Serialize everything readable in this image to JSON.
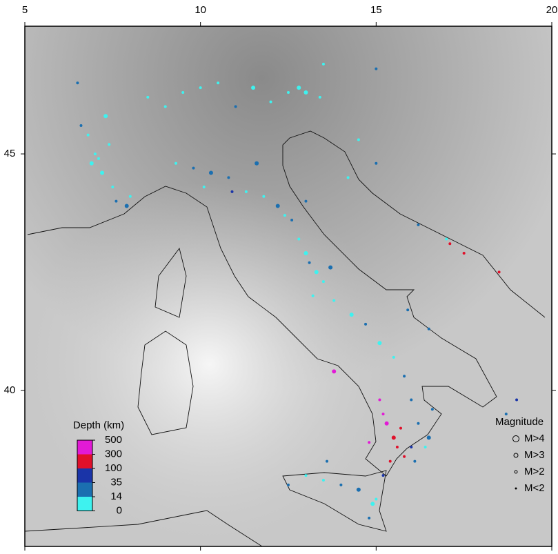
{
  "map": {
    "xlim": [
      5,
      20
    ],
    "ylim": [
      36.7,
      47.7
    ],
    "xticks": [
      5,
      10,
      15,
      20
    ],
    "yticks": [
      40,
      45
    ],
    "depth_legend": {
      "title": "Depth (km)",
      "ticks": [
        0,
        14,
        35,
        100,
        300,
        500
      ],
      "colors": [
        "#3ef2ef",
        "#1b6fb0",
        "#1a34a8",
        "#e0102a",
        "#e21ad6"
      ]
    },
    "magnitude_legend": {
      "title": "Magnitude",
      "labels": [
        "M>4",
        "M>3",
        "M>2",
        "M<2"
      ],
      "sizes": [
        4.5,
        3,
        2,
        1
      ]
    },
    "earthquakes": [
      [
        7.0,
        45.0,
        5,
        2.5
      ],
      [
        7.2,
        44.6,
        8,
        3.2
      ],
      [
        7.5,
        44.3,
        6,
        2.2
      ],
      [
        6.8,
        45.4,
        10,
        2
      ],
      [
        7.3,
        45.8,
        4,
        3
      ],
      [
        8.0,
        44.1,
        9,
        2.4
      ],
      [
        7.6,
        44.0,
        20,
        2.1
      ],
      [
        6.9,
        44.8,
        7,
        3.5
      ],
      [
        7.1,
        44.9,
        3,
        2.8
      ],
      [
        7.4,
        45.2,
        12,
        2.2
      ],
      [
        6.6,
        45.6,
        25,
        2.6
      ],
      [
        7.9,
        43.9,
        15,
        3.1
      ],
      [
        9.5,
        46.3,
        5,
        2.2
      ],
      [
        10.5,
        46.5,
        6,
        2.5
      ],
      [
        11.5,
        46.4,
        8,
        3.1
      ],
      [
        12.5,
        46.3,
        6,
        2.6
      ],
      [
        13.0,
        46.3,
        9,
        3.3
      ],
      [
        13.4,
        46.2,
        7,
        2.4
      ],
      [
        12.0,
        46.1,
        10,
        2.8
      ],
      [
        8.5,
        46.2,
        5,
        2.3
      ],
      [
        9.0,
        46.0,
        4,
        2.1
      ],
      [
        10.0,
        46.4,
        6,
        2.7
      ],
      [
        12.8,
        46.4,
        12,
        3.6
      ],
      [
        11.0,
        46.0,
        22,
        2.3
      ],
      [
        6.5,
        46.5,
        20,
        2.4
      ],
      [
        10.3,
        44.6,
        20,
        3.0
      ],
      [
        10.8,
        44.5,
        25,
        2.6
      ],
      [
        11.3,
        44.2,
        10,
        2.4
      ],
      [
        9.8,
        44.7,
        30,
        2.8
      ],
      [
        11.8,
        44.1,
        8,
        2.5
      ],
      [
        12.2,
        43.9,
        18,
        3.2
      ],
      [
        10.9,
        44.2,
        40,
        2.2
      ],
      [
        9.3,
        44.8,
        12,
        2.1
      ],
      [
        11.6,
        44.8,
        28,
        3.4
      ],
      [
        10.1,
        44.3,
        6,
        2.6
      ],
      [
        12.4,
        43.7,
        9,
        2.3
      ],
      [
        12.8,
        43.2,
        8,
        2.7
      ],
      [
        13.0,
        42.9,
        10,
        3.8
      ],
      [
        13.3,
        42.5,
        9,
        3.1
      ],
      [
        13.5,
        42.3,
        11,
        2.4
      ],
      [
        12.6,
        43.6,
        15,
        2.2
      ],
      [
        13.2,
        42.0,
        7,
        2.9
      ],
      [
        13.8,
        41.9,
        12,
        2.5
      ],
      [
        14.3,
        41.6,
        10,
        3.3
      ],
      [
        14.7,
        41.4,
        22,
        2.6
      ],
      [
        15.1,
        41.0,
        11,
        3.0
      ],
      [
        15.5,
        40.7,
        9,
        2.4
      ],
      [
        15.8,
        40.3,
        24,
        2.8
      ],
      [
        16.0,
        39.8,
        30,
        2.3
      ],
      [
        13.1,
        42.7,
        26,
        2.5
      ],
      [
        13.7,
        42.6,
        20,
        3.4
      ],
      [
        15.5,
        39.0,
        250,
        3.0
      ],
      [
        15.3,
        39.3,
        400,
        3.5
      ],
      [
        15.6,
        38.8,
        150,
        2.5
      ],
      [
        15.2,
        39.5,
        450,
        2.8
      ],
      [
        15.8,
        38.6,
        120,
        2.0
      ],
      [
        16.0,
        38.8,
        80,
        2.0
      ],
      [
        14.8,
        38.9,
        300,
        2.5
      ],
      [
        15.4,
        38.5,
        100,
        2.2
      ],
      [
        13.8,
        40.4,
        350,
        3.2
      ],
      [
        15.1,
        39.8,
        420,
        2.6
      ],
      [
        15.7,
        39.2,
        180,
        2.1
      ],
      [
        13.0,
        38.2,
        12,
        2.4
      ],
      [
        14.0,
        38.0,
        20,
        2.6
      ],
      [
        14.5,
        37.9,
        30,
        3.1
      ],
      [
        15.0,
        37.7,
        10,
        2.8
      ],
      [
        14.8,
        37.3,
        25,
        2.3
      ],
      [
        13.5,
        38.1,
        8,
        2.5
      ],
      [
        12.5,
        38.0,
        15,
        2.2
      ],
      [
        15.2,
        38.2,
        40,
        2.7
      ],
      [
        14.9,
        37.6,
        6,
        3.4
      ],
      [
        13.6,
        38.5,
        28,
        2.2
      ],
      [
        16.2,
        39.3,
        22,
        2.6
      ],
      [
        16.5,
        39.0,
        30,
        3.1
      ],
      [
        16.1,
        38.5,
        25,
        2.4
      ],
      [
        16.4,
        38.8,
        12,
        2.7
      ],
      [
        16.6,
        39.6,
        18,
        2.2
      ],
      [
        14.5,
        45.3,
        12,
        2.3
      ],
      [
        15.0,
        44.8,
        15,
        2.6
      ],
      [
        16.2,
        43.5,
        20,
        2.4
      ],
      [
        17.0,
        43.2,
        10,
        2.1
      ],
      [
        13.0,
        44.0,
        30,
        2.8
      ],
      [
        14.2,
        44.5,
        8,
        2.2
      ],
      [
        17.5,
        42.9,
        150,
        2.0
      ],
      [
        18.5,
        42.5,
        120,
        2.0
      ],
      [
        17.1,
        43.1,
        100,
        2.0
      ],
      [
        15.9,
        41.7,
        25,
        2.6
      ],
      [
        16.5,
        41.3,
        30,
        2.3
      ],
      [
        19.0,
        39.8,
        40,
        2.4
      ],
      [
        18.7,
        39.5,
        22,
        2.2
      ],
      [
        15.0,
        46.8,
        20,
        2.5
      ],
      [
        13.5,
        46.9,
        12,
        2.1
      ]
    ]
  }
}
